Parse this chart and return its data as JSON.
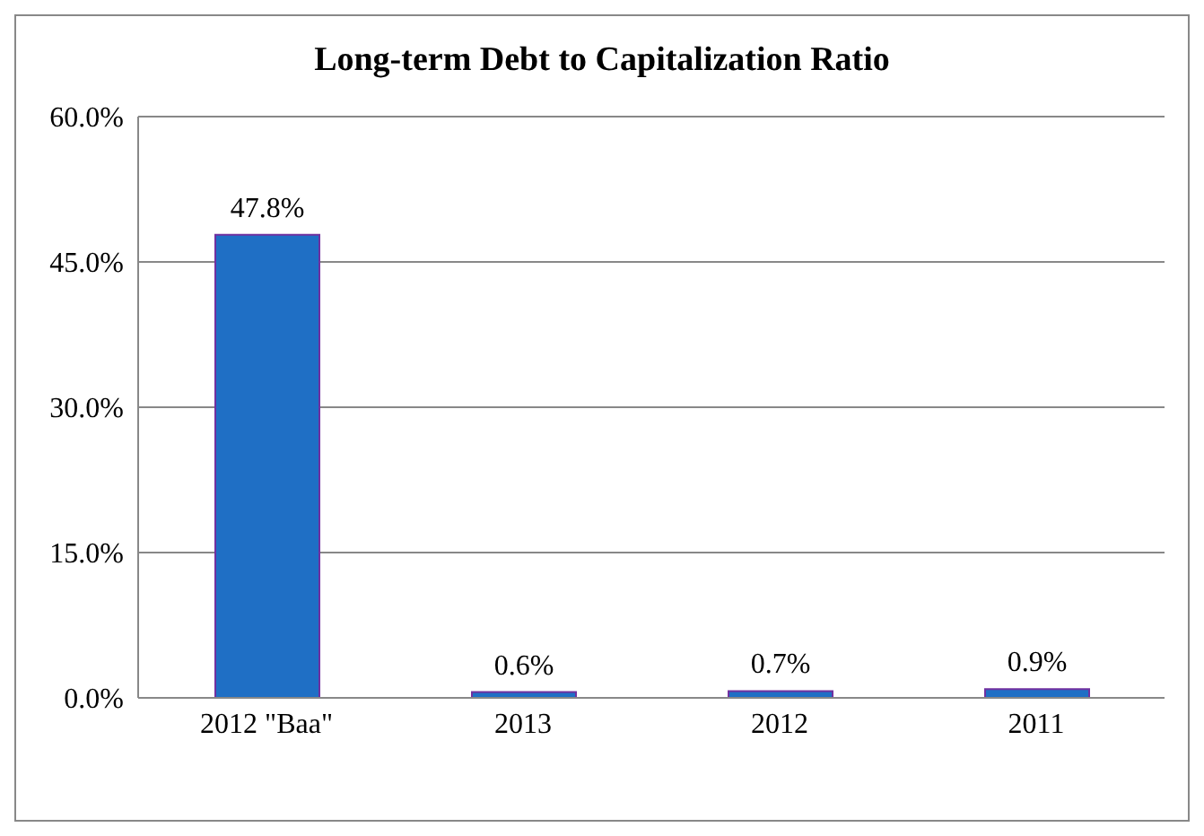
{
  "chart_data": {
    "type": "bar",
    "title": "Long-term Debt to Capitalization Ratio",
    "categories": [
      "2012 \"Baa\"",
      "2013",
      "2012",
      "2011"
    ],
    "values": [
      47.8,
      0.6,
      0.7,
      0.9
    ],
    "value_labels": [
      "47.8%",
      "0.6%",
      "0.7%",
      "0.9%"
    ],
    "color": "#1f6fc5",
    "ylim": [
      0,
      60
    ],
    "yticks": [
      {
        "value": 0,
        "label": "0.0%"
      },
      {
        "value": 15,
        "label": "15.0%"
      },
      {
        "value": 30,
        "label": "30.0%"
      },
      {
        "value": 45,
        "label": "45.0%"
      },
      {
        "value": 60,
        "label": "60.0%"
      }
    ],
    "grid": "y",
    "legend": false
  }
}
